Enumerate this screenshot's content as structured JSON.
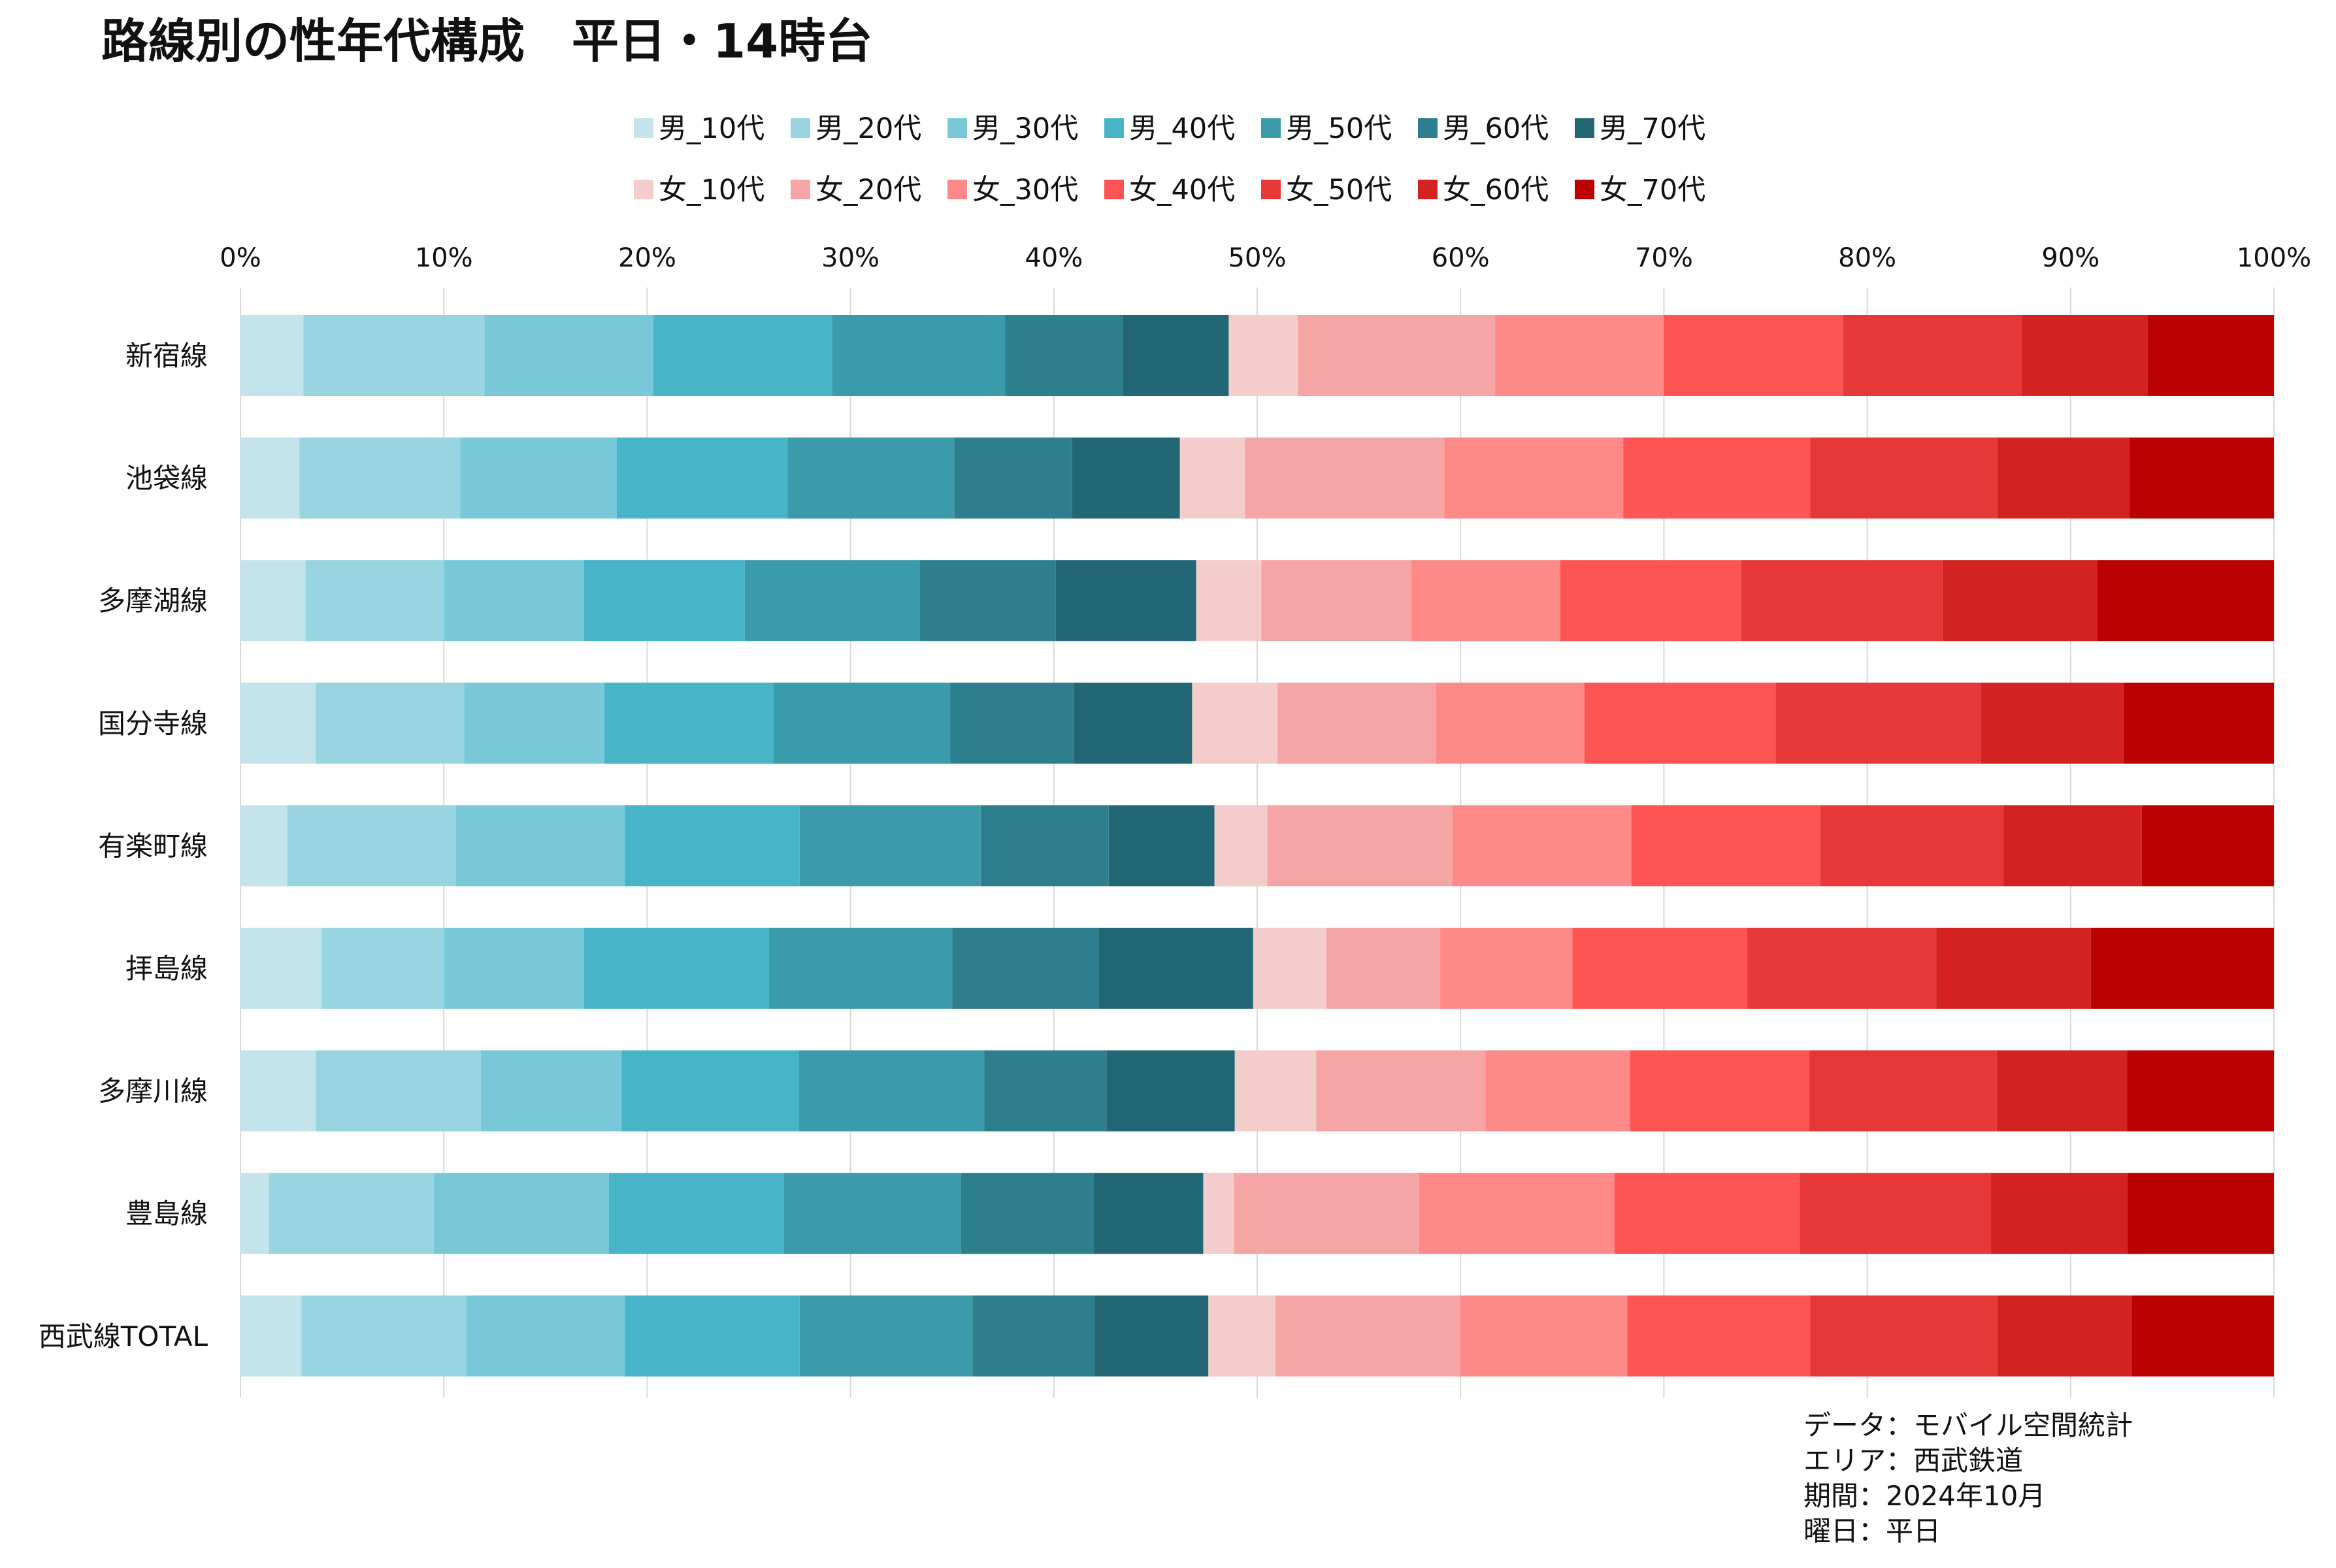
{
  "chart_data": {
    "type": "bar",
    "orientation": "horizontal",
    "stacked": true,
    "normalized": true,
    "title": "路線別の性年代構成　平日・14時台",
    "xlim": [
      0,
      100
    ],
    "x_ticks": [
      "0%",
      "10%",
      "20%",
      "30%",
      "40%",
      "50%",
      "60%",
      "70%",
      "80%",
      "90%",
      "100%"
    ],
    "grid": "vertical",
    "legend_position": "top",
    "categories": [
      "新宿線",
      "池袋線",
      "多摩湖線",
      "国分寺線",
      "有楽町線",
      "拝島線",
      "多摩川線",
      "豊島線",
      "西武線TOTAL"
    ],
    "series": [
      {
        "name": "男_10代",
        "color": "#c4e4ec",
        "values": [
          3.1,
          2.9,
          3.2,
          3.7,
          2.3,
          4.0,
          3.7,
          1.4,
          3.0
        ]
      },
      {
        "name": "男_20代",
        "color": "#98d5e0",
        "values": [
          8.9,
          7.9,
          6.8,
          7.3,
          8.3,
          6.0,
          8.1,
          8.1,
          8.1
        ]
      },
      {
        "name": "男_30代",
        "color": "#79c8d8",
        "values": [
          8.3,
          7.7,
          6.9,
          6.9,
          8.3,
          6.9,
          6.9,
          8.6,
          7.8
        ]
      },
      {
        "name": "男_40代",
        "color": "#47b4c8",
        "values": [
          8.8,
          8.4,
          7.9,
          8.3,
          8.6,
          9.1,
          8.7,
          8.6,
          8.6
        ]
      },
      {
        "name": "男_50代",
        "color": "#3c9bab",
        "values": [
          8.5,
          8.2,
          8.6,
          8.7,
          8.9,
          9.0,
          9.1,
          8.7,
          8.5
        ]
      },
      {
        "name": "男_60代",
        "color": "#2d7f8d",
        "values": [
          5.8,
          5.8,
          6.7,
          6.1,
          6.3,
          7.2,
          6.0,
          6.5,
          6.0
        ]
      },
      {
        "name": "男_70代",
        "color": "#236674",
        "values": [
          5.2,
          5.3,
          6.9,
          5.8,
          5.2,
          7.6,
          6.3,
          5.4,
          5.6
        ]
      },
      {
        "name": "女_10代",
        "color": "#f4cccc",
        "values": [
          3.4,
          3.2,
          3.2,
          4.2,
          2.6,
          3.6,
          4.0,
          1.5,
          3.3
        ]
      },
      {
        "name": "女_20代",
        "color": "#f5a5a5",
        "values": [
          9.7,
          9.8,
          7.4,
          7.8,
          9.1,
          5.6,
          8.3,
          9.1,
          9.1
        ]
      },
      {
        "name": "女_30代",
        "color": "#fd8989",
        "values": [
          8.3,
          8.8,
          7.3,
          7.3,
          8.8,
          6.5,
          7.1,
          9.6,
          8.2
        ]
      },
      {
        "name": "女_40代",
        "color": "#fd5454",
        "values": [
          8.8,
          9.2,
          8.9,
          9.4,
          9.3,
          8.6,
          8.8,
          9.1,
          9.0
        ]
      },
      {
        "name": "女_50代",
        "color": "#e63838",
        "values": [
          8.8,
          9.2,
          9.9,
          10.1,
          9.0,
          9.3,
          9.2,
          9.4,
          9.2
        ]
      },
      {
        "name": "女_60代",
        "color": "#d22222",
        "values": [
          6.2,
          6.5,
          7.6,
          7.0,
          6.8,
          7.6,
          6.4,
          6.7,
          6.6
        ]
      },
      {
        "name": "女_70代",
        "color": "#bb0202",
        "values": [
          6.2,
          7.1,
          8.7,
          7.4,
          6.5,
          9.0,
          7.2,
          7.2,
          7.0
        ]
      }
    ],
    "annotations": [
      "データ：モバイル空間統計",
      "エリア：西武鉄道",
      "期間：2024年10月",
      "曜日：平日"
    ]
  }
}
